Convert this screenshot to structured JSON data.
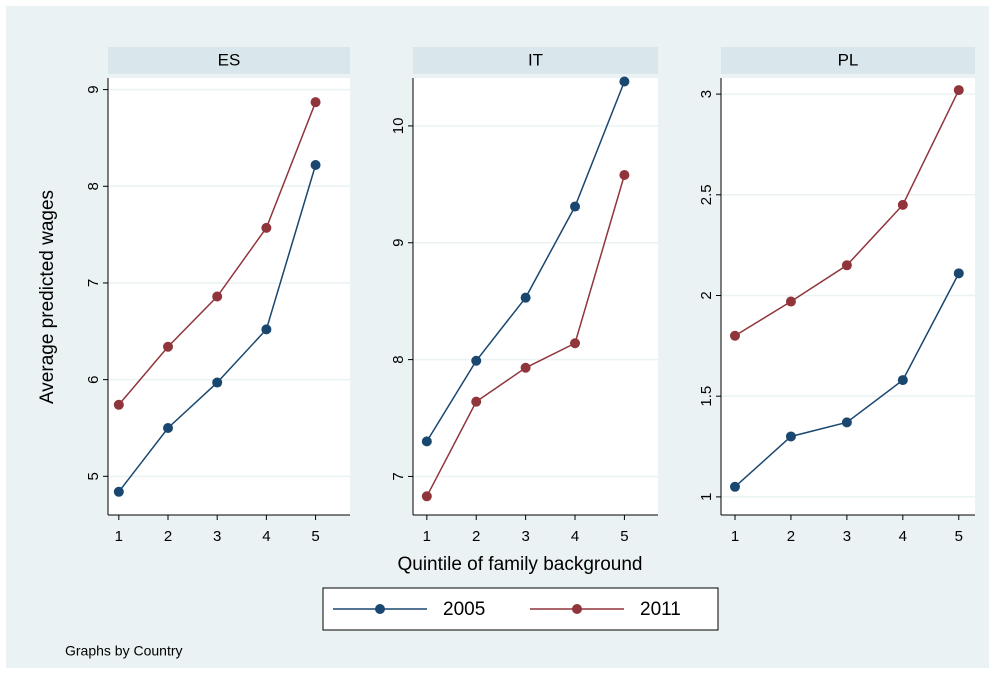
{
  "y_label": "Average predicted wages",
  "x_label": "Quintile of family background",
  "note": "Graphs by Country",
  "chart_data": [
    {
      "type": "line",
      "title": "ES",
      "x": [
        1,
        2,
        3,
        4,
        5
      ],
      "xlim": [
        0.78,
        5.7
      ],
      "xticks": [
        1,
        2,
        3,
        4,
        5
      ],
      "ylim": [
        4.6,
        9.12
      ],
      "yticks": [
        5,
        6,
        7,
        8,
        9
      ],
      "grid": true,
      "series": [
        {
          "name": "2005",
          "color": "#1a476f",
          "values": [
            4.84,
            5.5,
            5.97,
            6.52,
            8.22
          ]
        },
        {
          "name": "2011",
          "color": "#90353b",
          "values": [
            5.74,
            6.34,
            6.86,
            7.57,
            8.87
          ]
        }
      ]
    },
    {
      "type": "line",
      "title": "IT",
      "x": [
        1,
        2,
        3,
        4,
        5
      ],
      "xlim": [
        0.72,
        5.68
      ],
      "xticks": [
        1,
        2,
        3,
        4,
        5
      ],
      "ylim": [
        6.67,
        10.41
      ],
      "yticks": [
        7,
        8,
        9,
        10
      ],
      "grid": true,
      "series": [
        {
          "name": "2005",
          "color": "#1a476f",
          "values": [
            7.3,
            7.99,
            8.53,
            9.31,
            10.38
          ]
        },
        {
          "name": "2011",
          "color": "#90353b",
          "values": [
            6.83,
            7.64,
            7.93,
            8.14,
            9.58
          ]
        }
      ]
    },
    {
      "type": "line",
      "title": "PL",
      "x": [
        1,
        2,
        3,
        4,
        5
      ],
      "xlim": [
        0.75,
        5.29
      ],
      "xticks": [
        1,
        2,
        3,
        4,
        5
      ],
      "ylim": [
        0.91,
        3.08
      ],
      "yticks": [
        1,
        1.5,
        2,
        2.5,
        3
      ],
      "grid": true,
      "series": [
        {
          "name": "2005",
          "color": "#1a476f",
          "values": [
            1.05,
            1.3,
            1.37,
            1.58,
            2.11
          ]
        },
        {
          "name": "2011",
          "color": "#90353b",
          "values": [
            1.8,
            1.97,
            2.15,
            2.45,
            3.02
          ]
        }
      ]
    }
  ]
}
